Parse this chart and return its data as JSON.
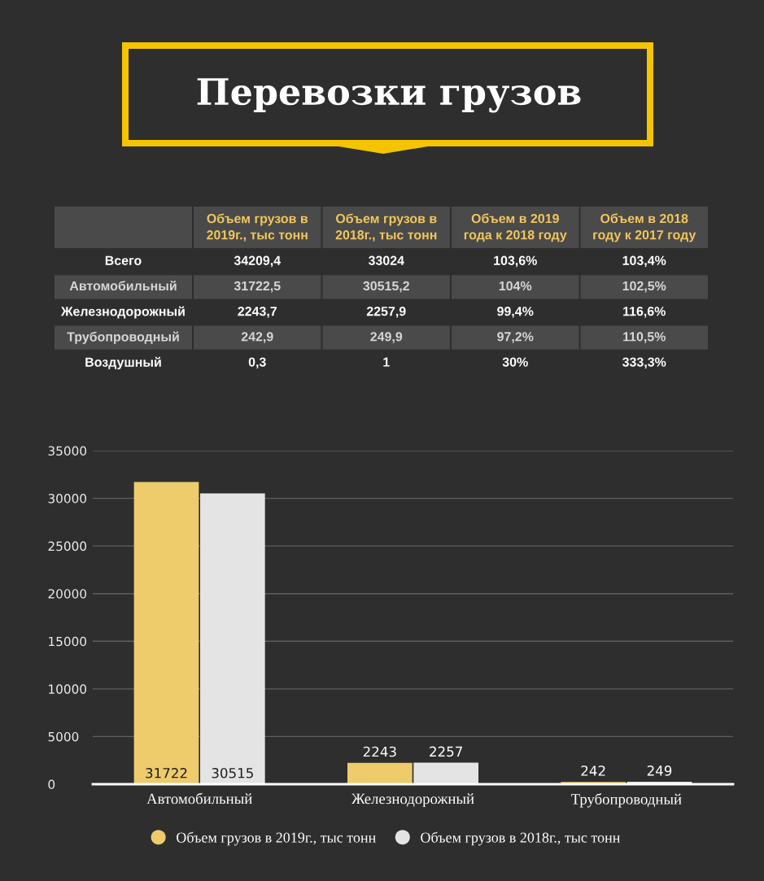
{
  "chart_data": [
    {
      "type": "other",
      "title": "Перевозки грузов",
      "categories": [
        null,
        "Объем грузов в\n2019г., тыс тонн",
        "Объем грузов в\n2018г., тыс тонн",
        "Объем в 2019\nгода к 2018 году",
        "Объем в 2018\nгоду к 2017 году"
      ],
      "y_categories": [
        "Всего",
        "Автомобильный",
        "Железнодорожный",
        "Трубопроводный",
        "Воздушный"
      ],
      "cell_labels": [
        [
          "34209,4",
          "33024",
          "103,6%",
          "103,4%"
        ],
        [
          "31722,5",
          "30515,2",
          "104%",
          "102,5%"
        ],
        [
          "2243,7",
          "2257,9",
          "99,4%",
          "116,6%"
        ],
        [
          "242,9",
          "249,9",
          "97,2%",
          "110,5%"
        ],
        [
          "0,3",
          "1",
          "30%",
          "333,3%"
        ]
      ]
    },
    {
      "type": "bar",
      "categories": [
        "Автомобильный",
        "Железнодорожный",
        "Трубопроводный"
      ],
      "series": [
        {
          "name": "Объем грузов в 2019г., тыс тонн",
          "color": "#eecb6b",
          "values": [
            31722,
            2243,
            242
          ]
        },
        {
          "name": "Объем грузов в 2018г., тыс тонн",
          "color": "#e4e4e4",
          "values": [
            30515,
            2257,
            249
          ]
        }
      ],
      "ylim": [
        0,
        35000
      ],
      "yticks": [
        0,
        5000,
        10000,
        15000,
        20000,
        25000,
        30000,
        35000
      ],
      "grid": "y",
      "legend": "bottom",
      "data_labels": true
    }
  ]
}
